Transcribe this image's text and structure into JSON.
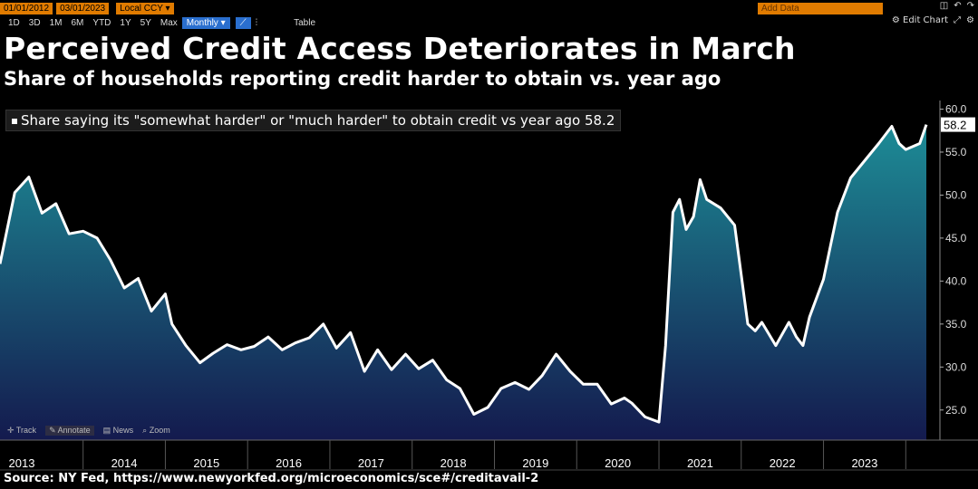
{
  "toolbar": {
    "start_date": "01/01/2012",
    "end_date": "03/01/2023",
    "currency": "Local CCY",
    "ranges": [
      "1D",
      "3D",
      "1M",
      "6M",
      "YTD",
      "1Y",
      "5Y",
      "Max"
    ],
    "frequency": "Monthly",
    "table_label": "Table",
    "add_data_placeholder": "Add Data",
    "edit_chart_label": "Edit Chart"
  },
  "bottom_tools": {
    "track": "Track",
    "annotate": "Annotate",
    "news": "News",
    "zoom": "Zoom"
  },
  "source": "Source: NY Fed, https://www.newyorkfed.org/microeconomics/sce#/creditavail-2",
  "colors": {
    "background": "#000000",
    "line": "#ffffff",
    "area_top": "#1d8c96",
    "area_bottom": "#141a4e",
    "toolbar_accent": "#e07b00"
  },
  "chart_data": {
    "type": "area",
    "title": "Perceived Credit Access Deteriorates in March",
    "subtitle": "Share of households reporting credit harder to obtain vs. year ago",
    "series": [
      {
        "name": "Share saying its \"somewhat harder\" or \"much harder\" to obtain credit vs year ago",
        "last_value_label": "58.2",
        "points": [
          [
            2012.95,
            42.0
          ],
          [
            2013.13,
            50.3
          ],
          [
            2013.3,
            52.1
          ],
          [
            2013.46,
            47.9
          ],
          [
            2013.63,
            49.0
          ],
          [
            2013.79,
            45.5
          ],
          [
            2013.96,
            45.8
          ],
          [
            2014.13,
            45.0
          ],
          [
            2014.29,
            42.5
          ],
          [
            2014.46,
            39.2
          ],
          [
            2014.63,
            40.3
          ],
          [
            2014.79,
            36.5
          ],
          [
            2014.96,
            38.5
          ],
          [
            2015.04,
            35.0
          ],
          [
            2015.21,
            32.5
          ],
          [
            2015.38,
            30.5
          ],
          [
            2015.54,
            31.6
          ],
          [
            2015.71,
            32.6
          ],
          [
            2015.88,
            32.0
          ],
          [
            2016.04,
            32.4
          ],
          [
            2016.21,
            33.5
          ],
          [
            2016.38,
            32.0
          ],
          [
            2016.54,
            32.8
          ],
          [
            2016.71,
            33.4
          ],
          [
            2016.88,
            35.0
          ],
          [
            2017.04,
            32.2
          ],
          [
            2017.21,
            34.0
          ],
          [
            2017.38,
            29.5
          ],
          [
            2017.54,
            32.0
          ],
          [
            2017.71,
            29.7
          ],
          [
            2017.88,
            31.5
          ],
          [
            2018.04,
            29.8
          ],
          [
            2018.21,
            30.8
          ],
          [
            2018.38,
            28.5
          ],
          [
            2018.54,
            27.5
          ],
          [
            2018.71,
            24.5
          ],
          [
            2018.88,
            25.3
          ],
          [
            2019.04,
            27.5
          ],
          [
            2019.21,
            28.2
          ],
          [
            2019.38,
            27.4
          ],
          [
            2019.54,
            29.0
          ],
          [
            2019.71,
            31.5
          ],
          [
            2019.88,
            29.5
          ],
          [
            2020.04,
            28.0
          ],
          [
            2020.21,
            28.0
          ],
          [
            2020.38,
            25.7
          ],
          [
            2020.54,
            26.4
          ],
          [
            2020.63,
            25.8
          ],
          [
            2020.79,
            24.2
          ],
          [
            2020.96,
            23.6
          ],
          [
            2021.04,
            32.5
          ],
          [
            2021.13,
            48.0
          ],
          [
            2021.21,
            49.5
          ],
          [
            2021.29,
            46.0
          ],
          [
            2021.38,
            47.5
          ],
          [
            2021.46,
            51.8
          ],
          [
            2021.54,
            49.5
          ],
          [
            2021.71,
            48.5
          ],
          [
            2021.88,
            46.5
          ],
          [
            2022.04,
            35.0
          ],
          [
            2022.13,
            34.2
          ],
          [
            2022.21,
            35.2
          ],
          [
            2022.38,
            32.5
          ],
          [
            2022.54,
            35.2
          ],
          [
            2022.63,
            33.5
          ],
          [
            2022.71,
            32.5
          ],
          [
            2022.79,
            35.8
          ],
          [
            2022.96,
            40.2
          ],
          [
            2023.13,
            48.0
          ],
          [
            2023.29,
            52.0
          ],
          [
            2023.46,
            54.0
          ],
          [
            2023.63,
            56.0
          ],
          [
            2023.79,
            58.0
          ],
          [
            2023.88,
            56.0
          ],
          [
            2023.96,
            55.3
          ],
          [
            2024.13,
            56.0
          ],
          [
            2024.21,
            58.2
          ]
        ]
      }
    ],
    "x_tick_labels": [
      "2013",
      "2014",
      "2015",
      "2016",
      "2017",
      "2018",
      "2019",
      "2020",
      "2021",
      "2022",
      "2023"
    ],
    "y_tick_labels": [
      "25.0",
      "30.0",
      "35.0",
      "40.0",
      "45.0",
      "50.0",
      "55.0",
      "60.0"
    ],
    "ylim": [
      21.5,
      61.0
    ],
    "y_axis_side": "right",
    "legend_position": "top-left",
    "grid": false
  }
}
